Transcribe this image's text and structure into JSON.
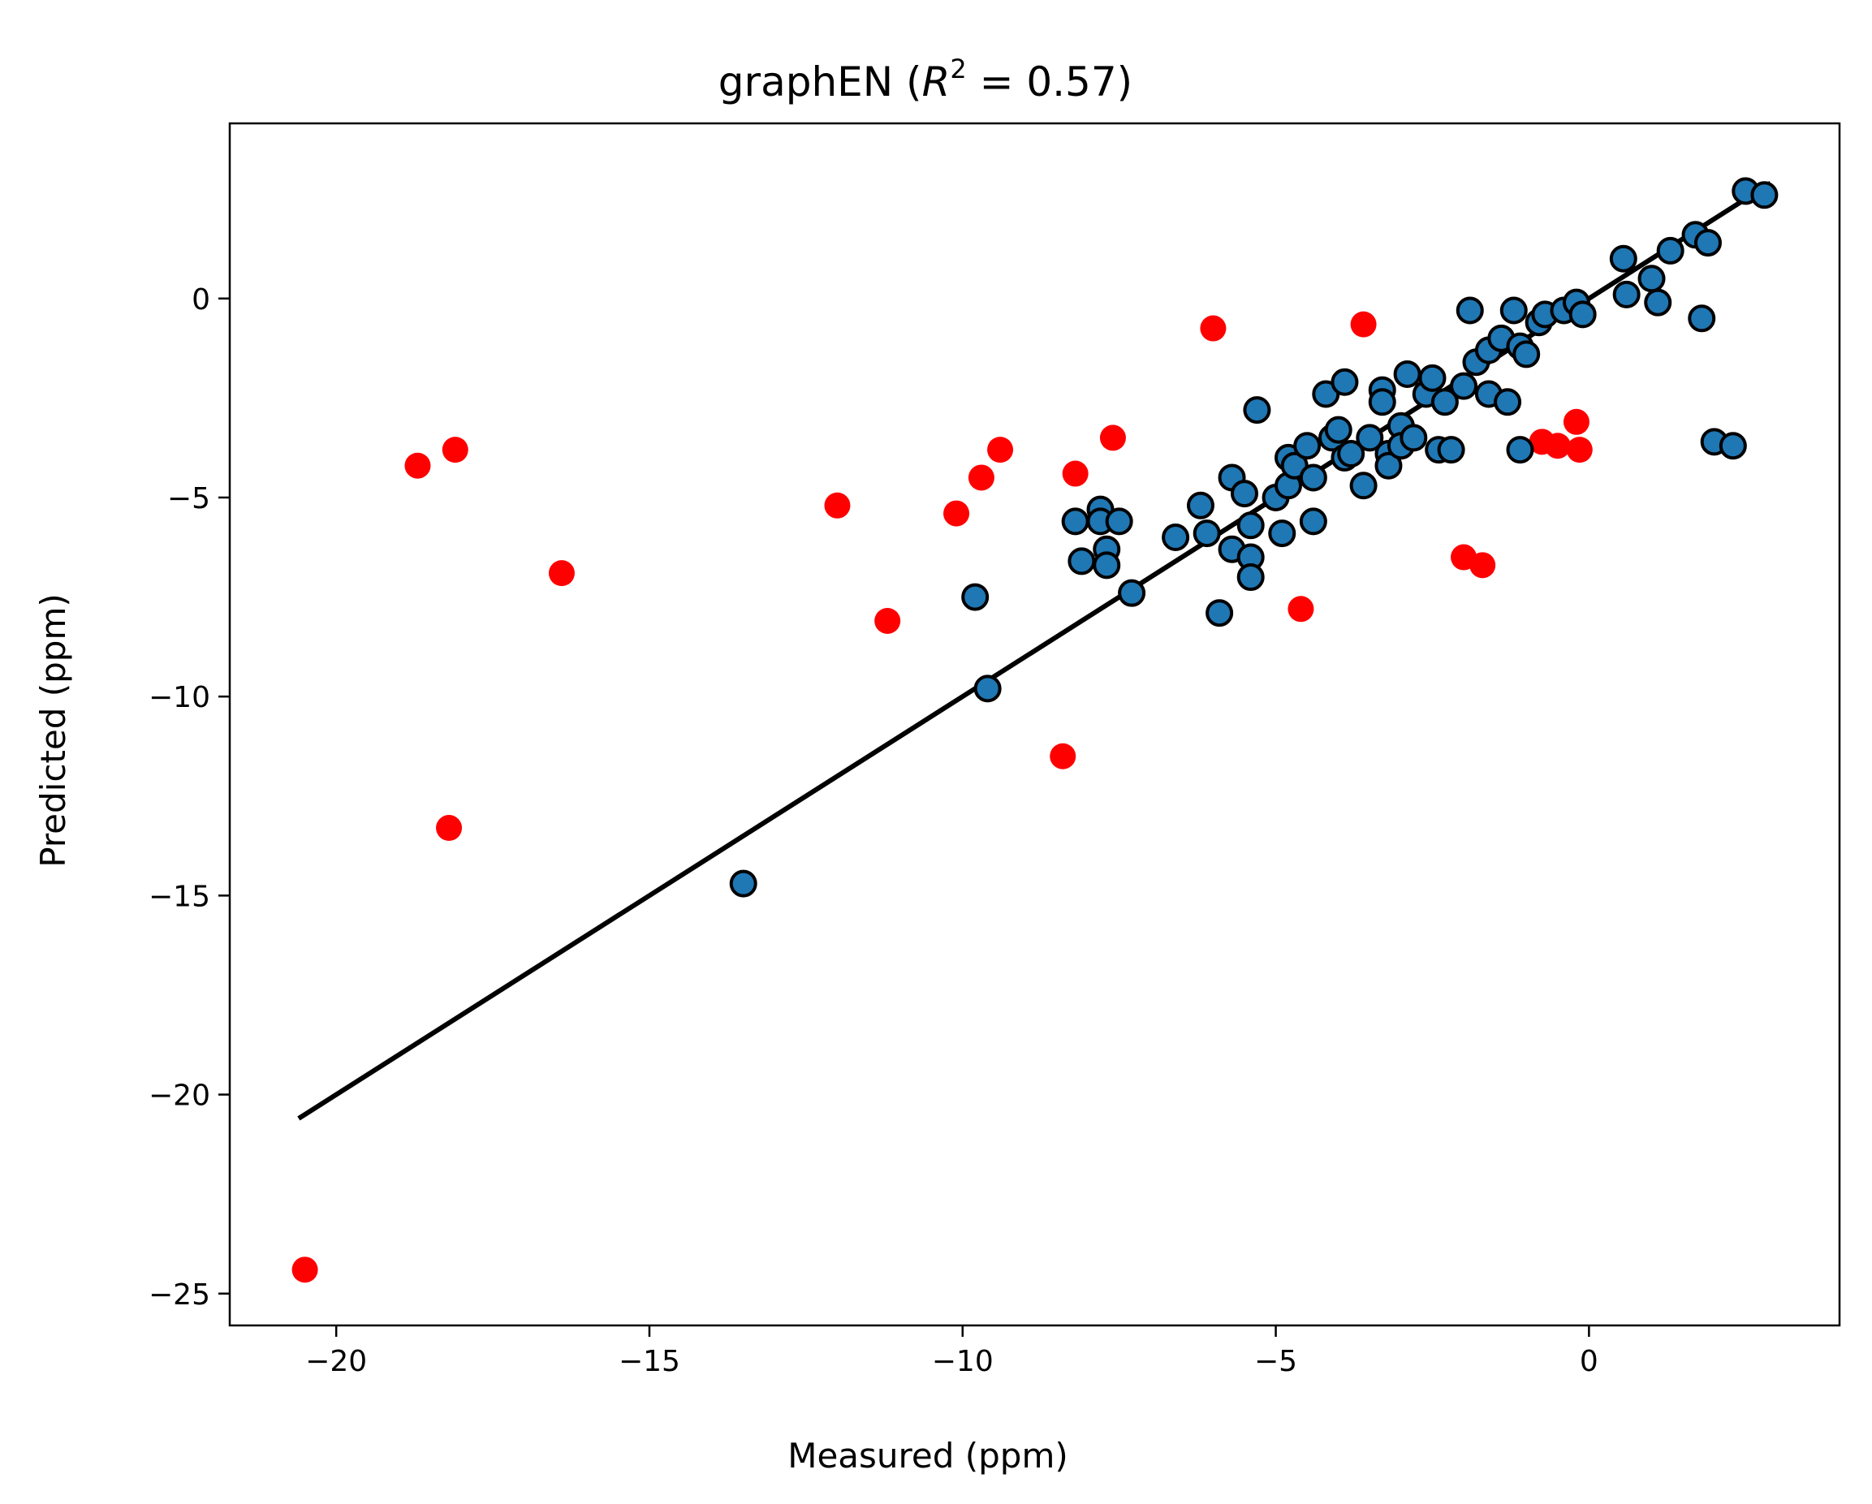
{
  "chart_data": {
    "type": "scatter",
    "title": {
      "prefix": "graphEN (",
      "var": "R",
      "sup": "2",
      "suffix": " = 0.57)"
    },
    "xlabel": "Measured (ppm)",
    "ylabel": "Predicted (ppm)",
    "xlim": [
      -21.7,
      4.0
    ],
    "ylim": [
      -25.8,
      4.4
    ],
    "xticks": [
      -20,
      -15,
      -10,
      -5,
      0
    ],
    "yticks": [
      -25,
      -20,
      -15,
      -10,
      -5,
      0
    ],
    "xtick_labels": [
      "−20",
      "−15",
      "−10",
      "−5",
      "0"
    ],
    "ytick_labels": [
      "−25",
      "−20",
      "−15",
      "−10",
      "−5",
      "0"
    ],
    "grid": false,
    "colors": {
      "blue_fill": "#1f77b4",
      "blue_edge": "#000000",
      "red": "#ff0000",
      "fit_line": "#000000"
    },
    "fit_line": {
      "x": [
        -20.6,
        2.9
      ],
      "y": [
        -20.6,
        2.9
      ]
    },
    "series": [
      {
        "color": "#ff0000",
        "edge": null,
        "points": [
          [
            -20.5,
            -24.4
          ],
          [
            -18.7,
            -4.2
          ],
          [
            -18.1,
            -3.8
          ],
          [
            -18.2,
            -13.3
          ],
          [
            -16.4,
            -6.9
          ],
          [
            -12.0,
            -5.2
          ],
          [
            -11.2,
            -8.1
          ],
          [
            -10.1,
            -5.4
          ],
          [
            -9.7,
            -4.5
          ],
          [
            -9.4,
            -3.8
          ],
          [
            -8.4,
            -11.5
          ],
          [
            -8.2,
            -4.4
          ],
          [
            -7.6,
            -3.5
          ],
          [
            -6.0,
            -0.75
          ],
          [
            -4.6,
            -7.8
          ],
          [
            -3.6,
            -0.65
          ],
          [
            -2.0,
            -6.5
          ],
          [
            -1.7,
            -6.7
          ],
          [
            -0.75,
            -3.6
          ],
          [
            -0.5,
            -3.7
          ],
          [
            -0.2,
            -3.1
          ],
          [
            -0.15,
            -3.8
          ]
        ]
      },
      {
        "color": "#1f77b4",
        "edge": "#000000",
        "points": [
          [
            -13.5,
            -14.7
          ],
          [
            -9.6,
            -9.8
          ],
          [
            -9.8,
            -7.5
          ],
          [
            -7.3,
            -7.4
          ],
          [
            -8.2,
            -5.6
          ],
          [
            -8.1,
            -6.6
          ],
          [
            -7.8,
            -5.3
          ],
          [
            -7.8,
            -5.6
          ],
          [
            -7.7,
            -6.3
          ],
          [
            -7.7,
            -6.7
          ],
          [
            -7.5,
            -5.6
          ],
          [
            -6.6,
            -6.0
          ],
          [
            -6.2,
            -5.2
          ],
          [
            -6.1,
            -5.9
          ],
          [
            -5.9,
            -7.9
          ],
          [
            -5.7,
            -4.5
          ],
          [
            -5.7,
            -6.3
          ],
          [
            -5.5,
            -4.9
          ],
          [
            -5.4,
            -5.7
          ],
          [
            -5.4,
            -6.5
          ],
          [
            -5.4,
            -7.0
          ],
          [
            -5.3,
            -2.8
          ],
          [
            -5.0,
            -5.0
          ],
          [
            -4.9,
            -5.9
          ],
          [
            -4.8,
            -4.0
          ],
          [
            -4.8,
            -4.7
          ],
          [
            -4.7,
            -4.2
          ],
          [
            -4.5,
            -3.7
          ],
          [
            -4.4,
            -4.5
          ],
          [
            -4.4,
            -5.6
          ],
          [
            -4.2,
            -2.4
          ],
          [
            -4.1,
            -3.5
          ],
          [
            -4.0,
            -3.3
          ],
          [
            -3.9,
            -2.1
          ],
          [
            -3.9,
            -4.0
          ],
          [
            -3.8,
            -3.9
          ],
          [
            -3.6,
            -4.7
          ],
          [
            -3.5,
            -3.5
          ],
          [
            -3.3,
            -2.3
          ],
          [
            -3.3,
            -2.6
          ],
          [
            -3.2,
            -3.9
          ],
          [
            -3.2,
            -4.2
          ],
          [
            -3.0,
            -3.2
          ],
          [
            -3.0,
            -3.7
          ],
          [
            -2.9,
            -1.9
          ],
          [
            -2.8,
            -3.5
          ],
          [
            -2.6,
            -2.4
          ],
          [
            -2.5,
            -2.0
          ],
          [
            -2.4,
            -3.8
          ],
          [
            -2.3,
            -2.6
          ],
          [
            -2.2,
            -3.8
          ],
          [
            -2.0,
            -2.2
          ],
          [
            -1.9,
            -0.3
          ],
          [
            -1.8,
            -1.6
          ],
          [
            -1.6,
            -1.3
          ],
          [
            -1.6,
            -2.4
          ],
          [
            -1.4,
            -1.0
          ],
          [
            -1.3,
            -2.6
          ],
          [
            -1.2,
            -0.3
          ],
          [
            -1.1,
            -3.8
          ],
          [
            -1.1,
            -1.2
          ],
          [
            -1.0,
            -1.4
          ],
          [
            -0.8,
            -0.6
          ],
          [
            -0.7,
            -0.4
          ],
          [
            -0.4,
            -0.3
          ],
          [
            -0.2,
            -0.1
          ],
          [
            -0.1,
            -0.4
          ],
          [
            0.55,
            1.0
          ],
          [
            0.6,
            0.1
          ],
          [
            1.0,
            0.5
          ],
          [
            1.1,
            -0.1
          ],
          [
            1.3,
            1.2
          ],
          [
            1.7,
            1.6
          ],
          [
            1.8,
            -0.5
          ],
          [
            1.9,
            1.4
          ],
          [
            2.0,
            -3.6
          ],
          [
            2.3,
            -3.7
          ],
          [
            2.5,
            2.7
          ],
          [
            2.8,
            2.6
          ]
        ]
      }
    ]
  }
}
